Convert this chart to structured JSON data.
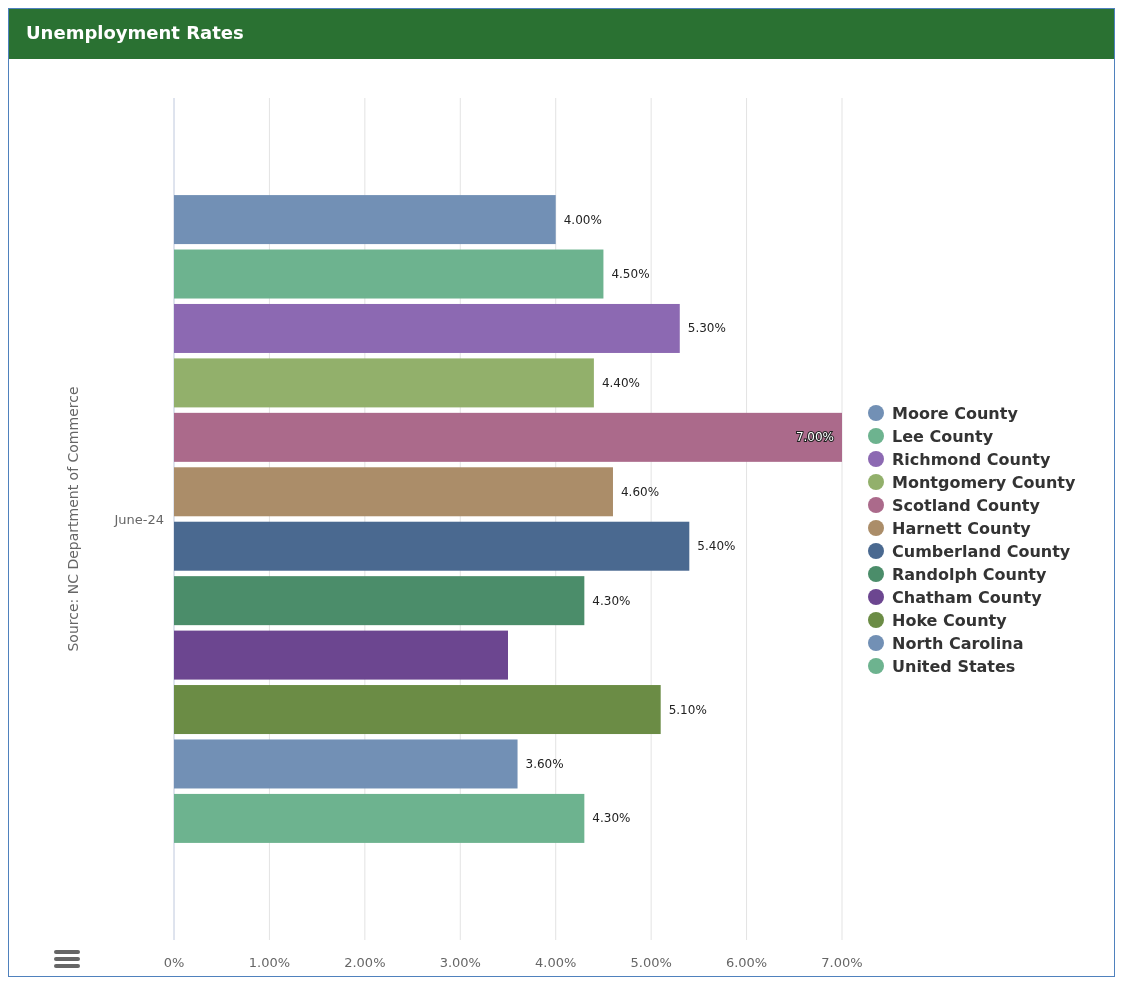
{
  "chart_data": {
    "type": "bar",
    "orientation": "horizontal",
    "title": "Unemployment Rates",
    "annotations": [
      "Source: NC Department of Commerce"
    ],
    "categories": [
      "June-24"
    ],
    "xlim": [
      0,
      7
    ],
    "xticks": [
      {
        "value": 0,
        "label": "0%"
      },
      {
        "value": 1,
        "label": "1.00%"
      },
      {
        "value": 2,
        "label": "2.00%"
      },
      {
        "value": 3,
        "label": "3.00%"
      },
      {
        "value": 4,
        "label": "4.00%"
      },
      {
        "value": 5,
        "label": "5.00%"
      },
      {
        "value": 6,
        "label": "6.00%"
      },
      {
        "value": 7,
        "label": "7.00%"
      }
    ],
    "grid": "x",
    "legend": "right",
    "series": [
      {
        "name": "Moore County",
        "color": "#7290b5",
        "values": [
          4.0
        ],
        "value_labels": [
          "4.00%"
        ]
      },
      {
        "name": "Lee County",
        "color": "#6db38f",
        "values": [
          4.5
        ],
        "value_labels": [
          "4.50%"
        ]
      },
      {
        "name": "Richmond County",
        "color": "#8c69b2",
        "values": [
          5.3
        ],
        "value_labels": [
          "5.30%"
        ]
      },
      {
        "name": "Montgomery County",
        "color": "#92b06b",
        "values": [
          4.4
        ],
        "value_labels": [
          "4.40%"
        ]
      },
      {
        "name": "Scotland County",
        "color": "#ab6a8b",
        "values": [
          7.0
        ],
        "value_labels": [
          "7.00%"
        ]
      },
      {
        "name": "Harnett County",
        "color": "#ab8d69",
        "values": [
          4.6
        ],
        "value_labels": [
          "4.60%"
        ]
      },
      {
        "name": "Cumberland County",
        "color": "#4a6990",
        "values": [
          5.4
        ],
        "value_labels": [
          "5.40%"
        ]
      },
      {
        "name": "Randolph County",
        "color": "#4b8d6a",
        "values": [
          4.3
        ],
        "value_labels": [
          "4.30%"
        ]
      },
      {
        "name": "Chatham County",
        "color": "#6c4690",
        "values": [
          3.5
        ],
        "value_labels": [
          null
        ]
      },
      {
        "name": "Hoke County",
        "color": "#6b8c45",
        "values": [
          5.1
        ],
        "value_labels": [
          "5.10%"
        ]
      },
      {
        "name": "North Carolina",
        "color": "#7290b5",
        "values": [
          3.6
        ],
        "value_labels": [
          "3.60%"
        ]
      },
      {
        "name": "United States",
        "color": "#6db38f",
        "values": [
          4.3
        ],
        "value_labels": [
          "4.30%"
        ]
      }
    ]
  }
}
